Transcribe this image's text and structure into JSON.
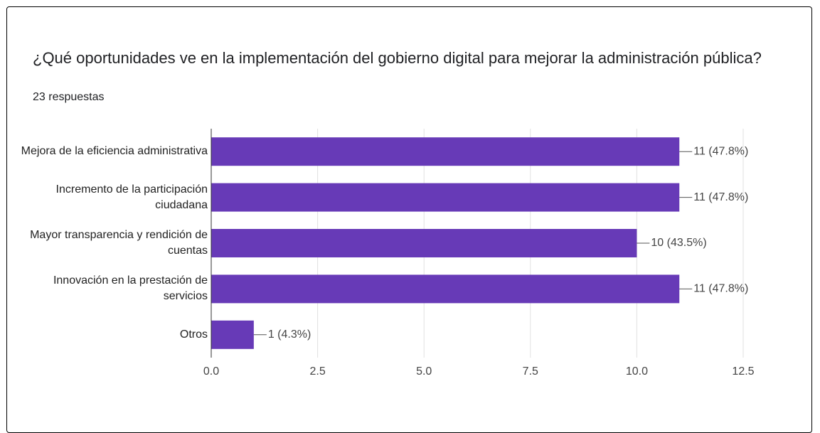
{
  "chart_data": {
    "type": "bar",
    "orientation": "horizontal",
    "title": "¿Qué oportunidades ve en la implementación del gobierno digital para mejorar la administración pública?",
    "subtitle": "23 respuestas",
    "categories": [
      "Mejora de la eficiencia administrativa",
      "Incremento de la participación ciudadana",
      "Mayor transparencia y rendición de cuentas",
      "Innovación en la prestación de servicios",
      "Otros"
    ],
    "values": [
      11,
      11,
      10,
      11,
      1
    ],
    "value_labels": [
      "11 (47.8%)",
      "11 (47.8%)",
      "10 (43.5%)",
      "11 (47.8%)",
      "1 (4.3%)"
    ],
    "color": "#673ab7",
    "xlim": [
      0,
      12.5
    ],
    "xticks": [
      {
        "value": 0,
        "label": "0.0"
      },
      2.5,
      {
        "value": 5,
        "label": "5.0"
      },
      7.5,
      {
        "value": 10,
        "label": "10.0"
      },
      12.5
    ],
    "grid": true
  }
}
